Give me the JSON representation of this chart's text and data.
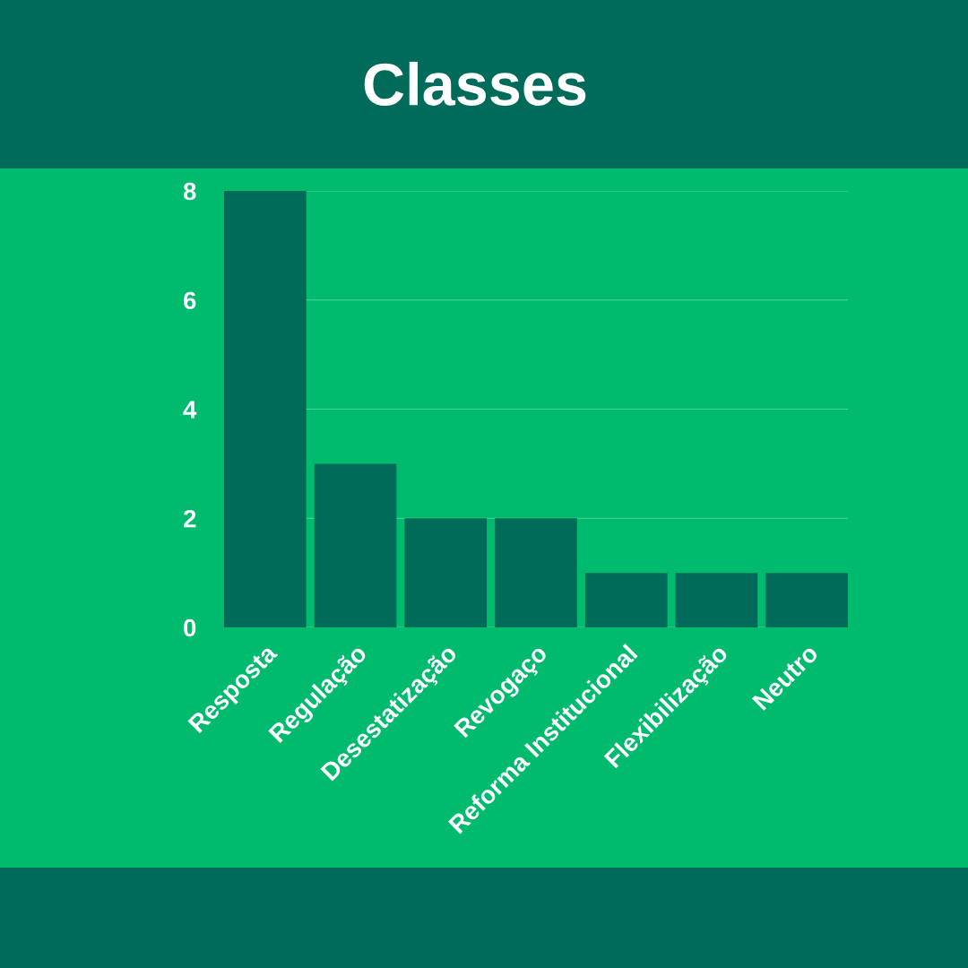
{
  "chart_data": {
    "type": "bar",
    "title": "Classes",
    "categories": [
      "Resposta",
      "Regulação",
      "Desestatização",
      "Revogaço",
      "Reforma Institucional",
      "Flexibilização",
      "Neutro"
    ],
    "values": [
      8,
      3,
      2,
      2,
      1,
      1,
      1
    ],
    "color": "#006b58",
    "ylim": [
      0,
      8
    ],
    "yticks": [
      0,
      2,
      4,
      6,
      8
    ],
    "grid": "y",
    "legend": false
  }
}
